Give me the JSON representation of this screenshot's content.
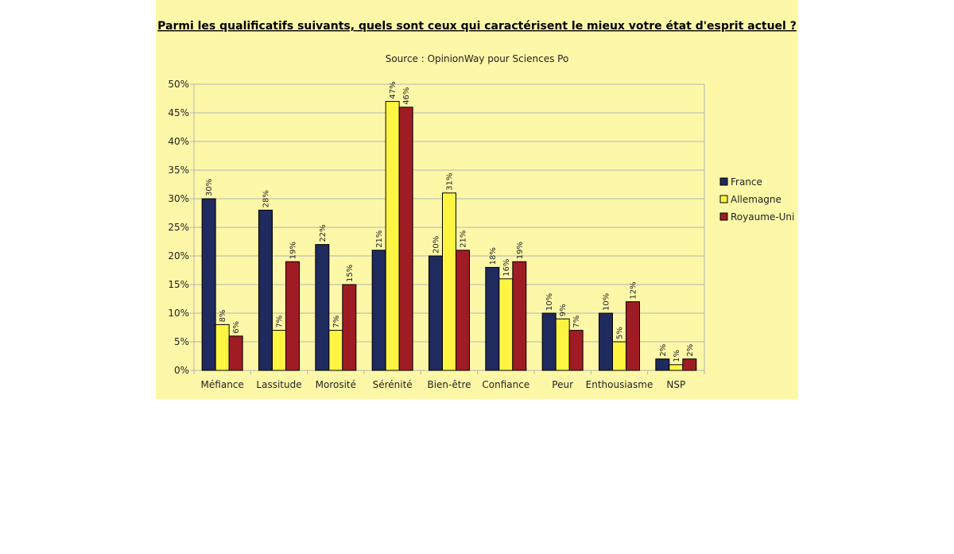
{
  "chart_data": {
    "type": "bar",
    "title": "Parmi les qualificatifs suivants, quels sont ceux qui caractérisent le mieux votre état d'esprit actuel ?",
    "subtitle": "Source : OpinionWay pour Sciences Po",
    "categories": [
      "Méfiance",
      "Lassitude",
      "Morosité",
      "Sérénité",
      "Bien-être",
      "Confiance",
      "Peur",
      "Enthousiasme",
      "NSP"
    ],
    "series": [
      {
        "name": "France",
        "color": "#1f2a5e",
        "values": [
          30,
          28,
          22,
          21,
          20,
          18,
          10,
          10,
          2
        ]
      },
      {
        "name": "Allemagne",
        "color": "#fdf542",
        "values": [
          8,
          7,
          7,
          47,
          31,
          16,
          9,
          5,
          1
        ]
      },
      {
        "name": "Royaume-Uni",
        "color": "#a01c24",
        "values": [
          6,
          19,
          15,
          46,
          21,
          19,
          7,
          12,
          2
        ]
      }
    ],
    "value_suffix": "%",
    "ylim": [
      0,
      50
    ],
    "yticks": [
      "0%",
      "5%",
      "10%",
      "15%",
      "20%",
      "25%",
      "30%",
      "35%",
      "40%",
      "45%",
      "50%"
    ],
    "grid": true,
    "legend_position": "right"
  }
}
